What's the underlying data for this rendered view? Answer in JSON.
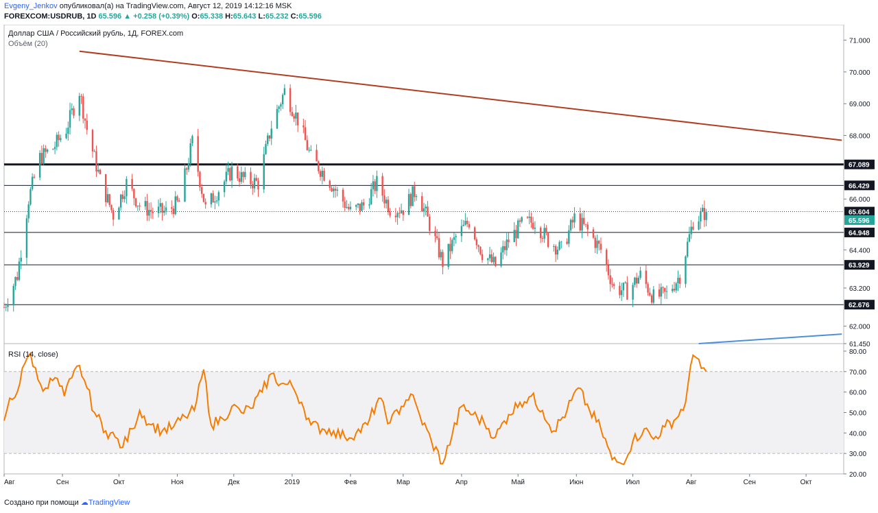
{
  "header": {
    "author": "Evgeny_Jenkov",
    "published_text": " опубликовал(а) на TradingView.com, Август 12, 2019 14:12:16 MSK",
    "symbol": "FOREXCOM:USDRUB, 1D",
    "last": "65.596",
    "change": "+0.258 (+0.39%)",
    "o_label": "O:",
    "o_val": "65.338",
    "h_label": "H:",
    "h_val": "65.643",
    "l_label": "L:",
    "l_val": "65.232",
    "c_label": "C:",
    "c_val": "65.596"
  },
  "footer": {
    "text": "Создано при помощи",
    "brand": "TradingView"
  },
  "colors": {
    "up": "#26a69a",
    "down": "#ef5350",
    "trendline": "#b33b1e",
    "uptrend": "#4a90d9",
    "rsi": "#f57c00",
    "last_badge": "#26a69a"
  },
  "chart_data": [
    {
      "type": "candlestick",
      "title": "Доллар США / Российский рубль, 1Д, FOREX.com",
      "subtitle": "Объём (20)",
      "ylim": [
        61.45,
        71.4
      ],
      "y_ticks": [
        "71.000",
        "70.000",
        "69.000",
        "68.000",
        "66.000",
        "64.400",
        "63.200",
        "62.000",
        "61.450"
      ],
      "x_ticks": [
        "Авг",
        "Сен",
        "Окт",
        "Ноя",
        "Дек",
        "2019",
        "Фев",
        "Мар",
        "Апр",
        "Май",
        "Июн",
        "Июл",
        "Авг",
        "Сен",
        "Окт"
      ],
      "levels": [
        {
          "label": "67.089",
          "value": 67.089,
          "style": "thick"
        },
        {
          "label": "66.429",
          "value": 66.429,
          "style": "normal"
        },
        {
          "label": "65.604",
          "value": 65.604,
          "style": "dotted"
        },
        {
          "label": "64.948",
          "value": 64.948,
          "style": "normal"
        },
        {
          "label": "63.929",
          "value": 63.929,
          "style": "normal"
        },
        {
          "label": "62.676",
          "value": 62.676,
          "style": "normal"
        }
      ],
      "last_price": "65.596",
      "trendline": {
        "from": {
          "date": "2018-09-10",
          "price": 70.65
        },
        "to": {
          "date": "2019-10-20",
          "price": 67.85
        }
      },
      "uptrend_line": {
        "from": {
          "date": "2019-08-05",
          "price": 61.45
        },
        "to": {
          "date": "2019-10-20",
          "price": 61.75
        }
      },
      "close_path": [
        {
          "date": "2018-08-01",
          "c": 62.6
        },
        {
          "date": "2018-08-08",
          "c": 63.6
        },
        {
          "date": "2018-08-14",
          "c": 66.0
        },
        {
          "date": "2018-08-20",
          "c": 67.3
        },
        {
          "date": "2018-08-27",
          "c": 67.6
        },
        {
          "date": "2018-09-03",
          "c": 68.2
        },
        {
          "date": "2018-09-10",
          "c": 69.4
        },
        {
          "date": "2018-09-14",
          "c": 68.2
        },
        {
          "date": "2018-09-21",
          "c": 66.6
        },
        {
          "date": "2018-09-28",
          "c": 65.5
        },
        {
          "date": "2018-10-05",
          "c": 66.5
        },
        {
          "date": "2018-10-12",
          "c": 65.8
        },
        {
          "date": "2018-10-19",
          "c": 65.6
        },
        {
          "date": "2018-10-26",
          "c": 65.6
        },
        {
          "date": "2018-11-02",
          "c": 65.9
        },
        {
          "date": "2018-11-09",
          "c": 67.8
        },
        {
          "date": "2018-11-16",
          "c": 65.7
        },
        {
          "date": "2018-11-23",
          "c": 66.3
        },
        {
          "date": "2018-11-30",
          "c": 66.9
        },
        {
          "date": "2018-12-07",
          "c": 66.6
        },
        {
          "date": "2018-12-14",
          "c": 66.5
        },
        {
          "date": "2018-12-21",
          "c": 68.3
        },
        {
          "date": "2018-12-28",
          "c": 69.4
        },
        {
          "date": "2019-01-04",
          "c": 68.5
        },
        {
          "date": "2019-01-11",
          "c": 67.3
        },
        {
          "date": "2019-01-18",
          "c": 66.8
        },
        {
          "date": "2019-01-25",
          "c": 66.2
        },
        {
          "date": "2019-02-01",
          "c": 65.6
        },
        {
          "date": "2019-02-08",
          "c": 65.8
        },
        {
          "date": "2019-02-15",
          "c": 66.5
        },
        {
          "date": "2019-02-22",
          "c": 65.7
        },
        {
          "date": "2019-03-01",
          "c": 65.7
        },
        {
          "date": "2019-03-08",
          "c": 66.3
        },
        {
          "date": "2019-03-15",
          "c": 65.2
        },
        {
          "date": "2019-03-22",
          "c": 64.0
        },
        {
          "date": "2019-03-29",
          "c": 64.8
        },
        {
          "date": "2019-04-05",
          "c": 65.3
        },
        {
          "date": "2019-04-12",
          "c": 64.3
        },
        {
          "date": "2019-04-19",
          "c": 63.9
        },
        {
          "date": "2019-04-26",
          "c": 64.7
        },
        {
          "date": "2019-05-03",
          "c": 65.2
        },
        {
          "date": "2019-05-10",
          "c": 65.3
        },
        {
          "date": "2019-05-17",
          "c": 64.7
        },
        {
          "date": "2019-05-24",
          "c": 64.4
        },
        {
          "date": "2019-05-31",
          "c": 65.4
        },
        {
          "date": "2019-06-07",
          "c": 65.0
        },
        {
          "date": "2019-06-14",
          "c": 64.4
        },
        {
          "date": "2019-06-21",
          "c": 63.2
        },
        {
          "date": "2019-06-28",
          "c": 63.1
        },
        {
          "date": "2019-07-05",
          "c": 63.6
        },
        {
          "date": "2019-07-12",
          "c": 62.9
        },
        {
          "date": "2019-07-19",
          "c": 63.0
        },
        {
          "date": "2019-07-26",
          "c": 63.6
        },
        {
          "date": "2019-08-02",
          "c": 65.3
        },
        {
          "date": "2019-08-09",
          "c": 65.6
        }
      ]
    },
    {
      "type": "line",
      "title": "RSI (14, close)",
      "ylim": [
        20,
        82
      ],
      "y_ticks": [
        "80.00",
        "70.00",
        "60.00",
        "50.00",
        "40.00",
        "30.00",
        "20.00"
      ],
      "bands": {
        "upper": 70,
        "lower": 30
      },
      "series": [
        {
          "points": [
            {
              "date": "2018-08-01",
              "v": 46
            },
            {
              "date": "2018-08-04",
              "v": 57
            },
            {
              "date": "2018-08-08",
              "v": 60
            },
            {
              "date": "2018-08-12",
              "v": 74
            },
            {
              "date": "2018-08-15",
              "v": 79
            },
            {
              "date": "2018-08-19",
              "v": 66
            },
            {
              "date": "2018-08-23",
              "v": 62
            },
            {
              "date": "2018-08-28",
              "v": 67
            },
            {
              "date": "2018-09-02",
              "v": 58
            },
            {
              "date": "2018-09-06",
              "v": 67
            },
            {
              "date": "2018-09-10",
              "v": 73
            },
            {
              "date": "2018-09-14",
              "v": 62
            },
            {
              "date": "2018-09-18",
              "v": 50
            },
            {
              "date": "2018-09-24",
              "v": 41
            },
            {
              "date": "2018-09-29",
              "v": 38
            },
            {
              "date": "2018-10-03",
              "v": 33
            },
            {
              "date": "2018-10-08",
              "v": 42
            },
            {
              "date": "2018-10-12",
              "v": 51
            },
            {
              "date": "2018-10-18",
              "v": 44
            },
            {
              "date": "2018-10-24",
              "v": 41
            },
            {
              "date": "2018-10-30",
              "v": 43
            },
            {
              "date": "2018-11-05",
              "v": 48
            },
            {
              "date": "2018-11-10",
              "v": 51
            },
            {
              "date": "2018-11-15",
              "v": 71
            },
            {
              "date": "2018-11-19",
              "v": 44
            },
            {
              "date": "2018-11-25",
              "v": 47
            },
            {
              "date": "2018-11-30",
              "v": 53
            },
            {
              "date": "2018-12-05",
              "v": 50
            },
            {
              "date": "2018-12-10",
              "v": 52
            },
            {
              "date": "2018-12-16",
              "v": 60
            },
            {
              "date": "2018-12-21",
              "v": 69
            },
            {
              "date": "2018-12-26",
              "v": 64
            },
            {
              "date": "2019-01-01",
              "v": 63
            },
            {
              "date": "2019-01-06",
              "v": 55
            },
            {
              "date": "2019-01-11",
              "v": 44
            },
            {
              "date": "2019-01-17",
              "v": 42
            },
            {
              "date": "2019-01-23",
              "v": 41
            },
            {
              "date": "2019-01-29",
              "v": 38
            },
            {
              "date": "2019-02-04",
              "v": 40
            },
            {
              "date": "2019-02-10",
              "v": 44
            },
            {
              "date": "2019-02-16",
              "v": 57
            },
            {
              "date": "2019-02-22",
              "v": 45
            },
            {
              "date": "2019-02-28",
              "v": 53
            },
            {
              "date": "2019-03-05",
              "v": 59
            },
            {
              "date": "2019-03-10",
              "v": 48
            },
            {
              "date": "2019-03-16",
              "v": 36
            },
            {
              "date": "2019-03-22",
              "v": 25
            },
            {
              "date": "2019-03-27",
              "v": 39
            },
            {
              "date": "2019-04-01",
              "v": 53
            },
            {
              "date": "2019-04-07",
              "v": 49
            },
            {
              "date": "2019-04-13",
              "v": 45
            },
            {
              "date": "2019-04-19",
              "v": 38
            },
            {
              "date": "2019-04-26",
              "v": 49
            },
            {
              "date": "2019-05-02",
              "v": 55
            },
            {
              "date": "2019-05-08",
              "v": 58
            },
            {
              "date": "2019-05-14",
              "v": 51
            },
            {
              "date": "2019-05-20",
              "v": 41
            },
            {
              "date": "2019-05-27",
              "v": 51
            },
            {
              "date": "2019-06-02",
              "v": 62
            },
            {
              "date": "2019-06-08",
              "v": 51
            },
            {
              "date": "2019-06-14",
              "v": 42
            },
            {
              "date": "2019-06-20",
              "v": 27
            },
            {
              "date": "2019-06-25",
              "v": 25
            },
            {
              "date": "2019-07-01",
              "v": 36
            },
            {
              "date": "2019-07-07",
              "v": 42
            },
            {
              "date": "2019-07-12",
              "v": 37
            },
            {
              "date": "2019-07-18",
              "v": 43
            },
            {
              "date": "2019-07-24",
              "v": 47
            },
            {
              "date": "2019-07-29",
              "v": 55
            },
            {
              "date": "2019-08-02",
              "v": 78
            },
            {
              "date": "2019-08-05",
              "v": 76
            },
            {
              "date": "2019-08-09",
              "v": 70
            }
          ]
        }
      ]
    }
  ]
}
